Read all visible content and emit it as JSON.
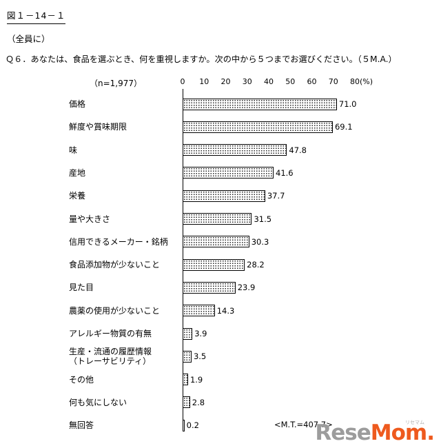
{
  "header": {
    "figure_label": "図１－14－１",
    "audience": "（全員に）",
    "question": "Ｑ６．あなたは、食品を選ぶとき、何を重視しますか。次の中から５つまでお選びください。（５M.A.）"
  },
  "chart_data": {
    "type": "bar",
    "orientation": "horizontal",
    "n_label": "（n=1,977）",
    "unit_label": "(%)",
    "axis_ticks": [
      0,
      10,
      20,
      30,
      40,
      50,
      60,
      70,
      80
    ],
    "xlim": [
      0,
      80
    ],
    "grid": "off",
    "bar_fill": "dotted-pattern",
    "categories": [
      "価格",
      "鮮度や賞味期限",
      "味",
      "産地",
      "栄養",
      "量や大きさ",
      "信用できるメーカー・銘柄",
      "食品添加物が少ないこと",
      "見た目",
      "農薬の使用が少ないこと",
      "アレルギー物質の有無",
      "生産・流通の履歴情報\n（トレーサビリティ）",
      "その他",
      "何も気にしない",
      "無回答"
    ],
    "values": [
      71.0,
      69.1,
      47.8,
      41.6,
      37.7,
      31.5,
      30.3,
      28.2,
      23.9,
      14.3,
      3.9,
      3.5,
      1.9,
      2.8,
      0.2
    ],
    "value_labels": [
      "71.0",
      "69.1",
      "47.8",
      "41.6",
      "37.7",
      "31.5",
      "30.3",
      "28.2",
      "23.9",
      "14.3",
      "3.9",
      "3.5",
      "1.9",
      "2.8",
      "0.2"
    ],
    "annotation": "<M.T.=407.7>"
  },
  "watermark": {
    "part1": "Rese",
    "part2": "Mom.",
    "ruby": "リセマム",
    "color1": "#9c9c9c",
    "color2": "#ee5a1e",
    "ruby_color": "#b0b0b0"
  }
}
